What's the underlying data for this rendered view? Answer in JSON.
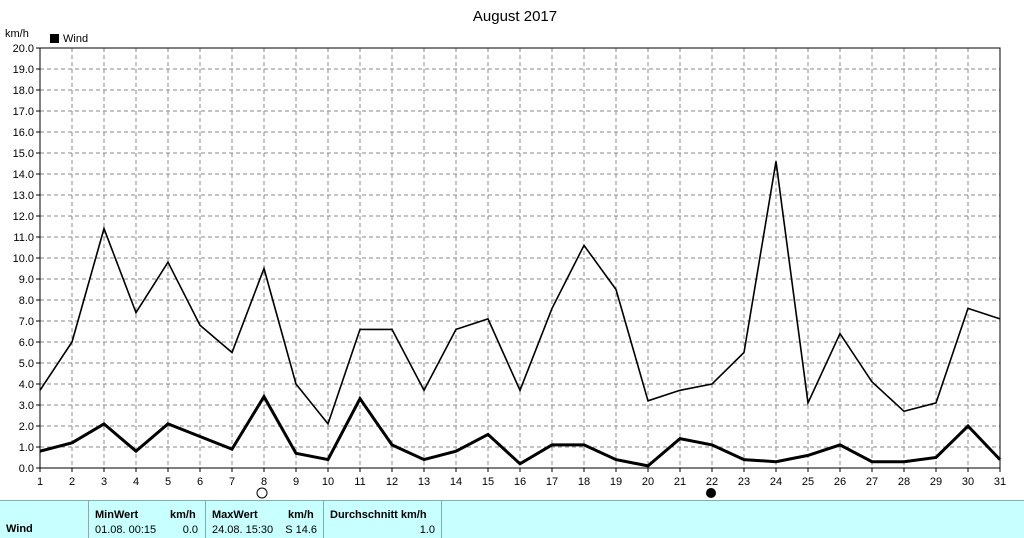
{
  "chart_data": {
    "type": "line",
    "title": "August 2017",
    "ylabel": "km/h",
    "legend": "Wind",
    "ylim": [
      0,
      20
    ],
    "ytick_step": 1,
    "x": [
      1,
      2,
      3,
      4,
      5,
      6,
      7,
      8,
      9,
      10,
      11,
      12,
      13,
      14,
      15,
      16,
      17,
      18,
      19,
      20,
      21,
      22,
      23,
      24,
      25,
      26,
      27,
      28,
      29,
      30,
      31
    ],
    "series": [
      {
        "key": "max",
        "values": [
          3.7,
          6.0,
          11.4,
          7.4,
          9.8,
          6.8,
          5.5,
          9.5,
          4.0,
          2.1,
          6.6,
          6.6,
          3.7,
          6.6,
          7.1,
          3.7,
          7.6,
          10.6,
          8.5,
          3.2,
          3.7,
          4.0,
          5.5,
          14.6,
          3.1,
          6.4,
          4.1,
          2.7,
          3.1,
          7.6,
          7.1
        ]
      },
      {
        "key": "avg",
        "values": [
          0.8,
          1.2,
          2.1,
          0.8,
          2.1,
          1.5,
          0.9,
          3.4,
          0.7,
          0.4,
          3.3,
          1.1,
          0.4,
          0.8,
          1.6,
          0.2,
          1.1,
          1.1,
          0.4,
          0.1,
          1.4,
          1.1,
          0.4,
          0.3,
          0.6,
          1.1,
          0.3,
          0.3,
          0.5,
          2.0,
          0.4
        ]
      }
    ],
    "moon_markers": [
      {
        "day": 8,
        "phase": "full-moon"
      },
      {
        "day": 22,
        "phase": "new-moon"
      }
    ],
    "grid": true,
    "legend_position": "top-left"
  },
  "stats": {
    "row_label": "Wind",
    "min_header": "MinWert",
    "min_unit": "km/h",
    "min_time": "01.08.  00:15",
    "min_value": "0.0",
    "max_header": "MaxWert",
    "max_unit": "km/h",
    "max_time": "24.08.  15:30",
    "max_value": "S 14.6",
    "avg_header": "Durchschnitt km/h",
    "avg_value": "1.0"
  }
}
